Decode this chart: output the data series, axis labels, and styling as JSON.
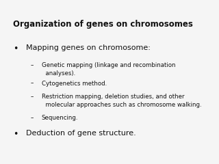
{
  "title": "Organization of genes on chromosomes",
  "background_color": "#f5f5f5",
  "title_fontsize": 8.5,
  "title_fontweight": "bold",
  "bullet1_text": "Mapping genes on chromosome:",
  "bullet1_fontsize": 8.0,
  "sub_bullets": [
    "Genetic mapping (linkage and recombination\n  analyses).",
    "Cytogenetics method.",
    "Restriction mapping, deletion studies, and other\n  molecular approaches such as chromosome walking.",
    "Sequencing."
  ],
  "sub_bullet_fontsize": 6.2,
  "bullet2_text": "Deduction of gene structure.",
  "bullet2_fontsize": 8.0,
  "text_color": "#111111"
}
